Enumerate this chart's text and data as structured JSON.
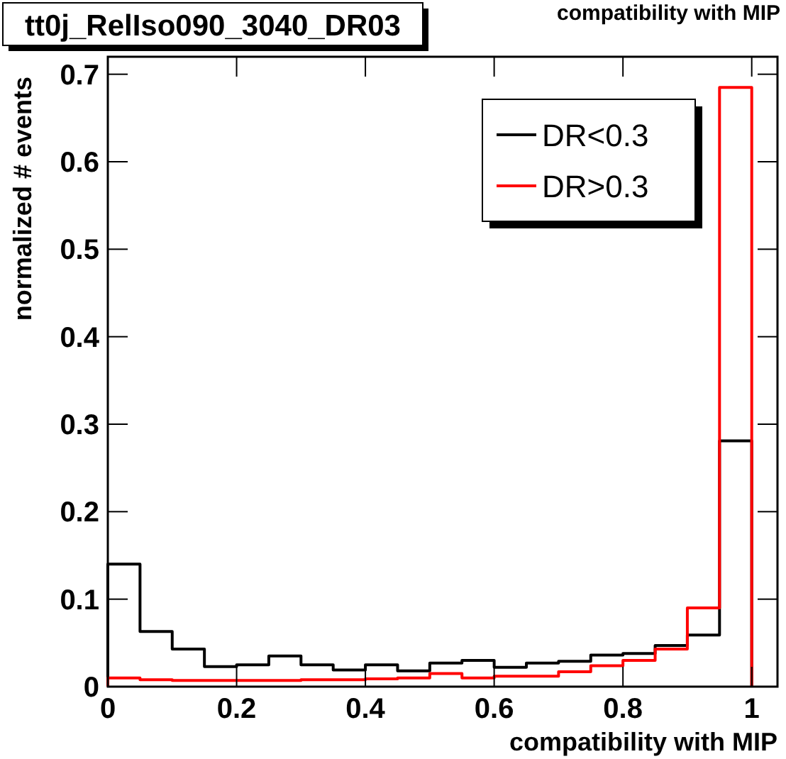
{
  "chart_data": {
    "type": "histogram",
    "title": "tt0j_RelIso090_3040_DR03",
    "xlabel": "compatibility with MIP",
    "ylabel": "normalized # events",
    "annotations": [
      "compatibility with MIP"
    ],
    "bins": [
      0,
      0.05,
      0.1,
      0.15,
      0.2,
      0.25,
      0.3,
      0.35,
      0.4,
      0.45,
      0.5,
      0.55,
      0.6,
      0.65,
      0.7,
      0.75,
      0.8,
      0.85,
      0.9,
      0.95,
      1.0
    ],
    "series": [
      {
        "name": "DR<0.3",
        "color": "#000000",
        "values": [
          0.14,
          0.063,
          0.043,
          0.023,
          0.025,
          0.035,
          0.025,
          0.019,
          0.025,
          0.018,
          0.027,
          0.03,
          0.022,
          0.027,
          0.029,
          0.036,
          0.038,
          0.047,
          0.059,
          0.281
        ]
      },
      {
        "name": "DR>0.3",
        "color": "#ff0000",
        "values": [
          0.01,
          0.008,
          0.007,
          0.007,
          0.007,
          0.007,
          0.008,
          0.008,
          0.009,
          0.01,
          0.015,
          0.01,
          0.012,
          0.012,
          0.017,
          0.024,
          0.03,
          0.043,
          0.09,
          0.685
        ]
      }
    ],
    "xlim": [
      0,
      1.04
    ],
    "ylim": [
      0,
      0.72
    ],
    "xticks": [
      0,
      0.2,
      0.4,
      0.6,
      0.8,
      1
    ],
    "yticks": [
      0,
      0.1,
      0.2,
      0.3,
      0.4,
      0.5,
      0.6,
      0.7
    ],
    "legend": "top right",
    "grid": false
  }
}
